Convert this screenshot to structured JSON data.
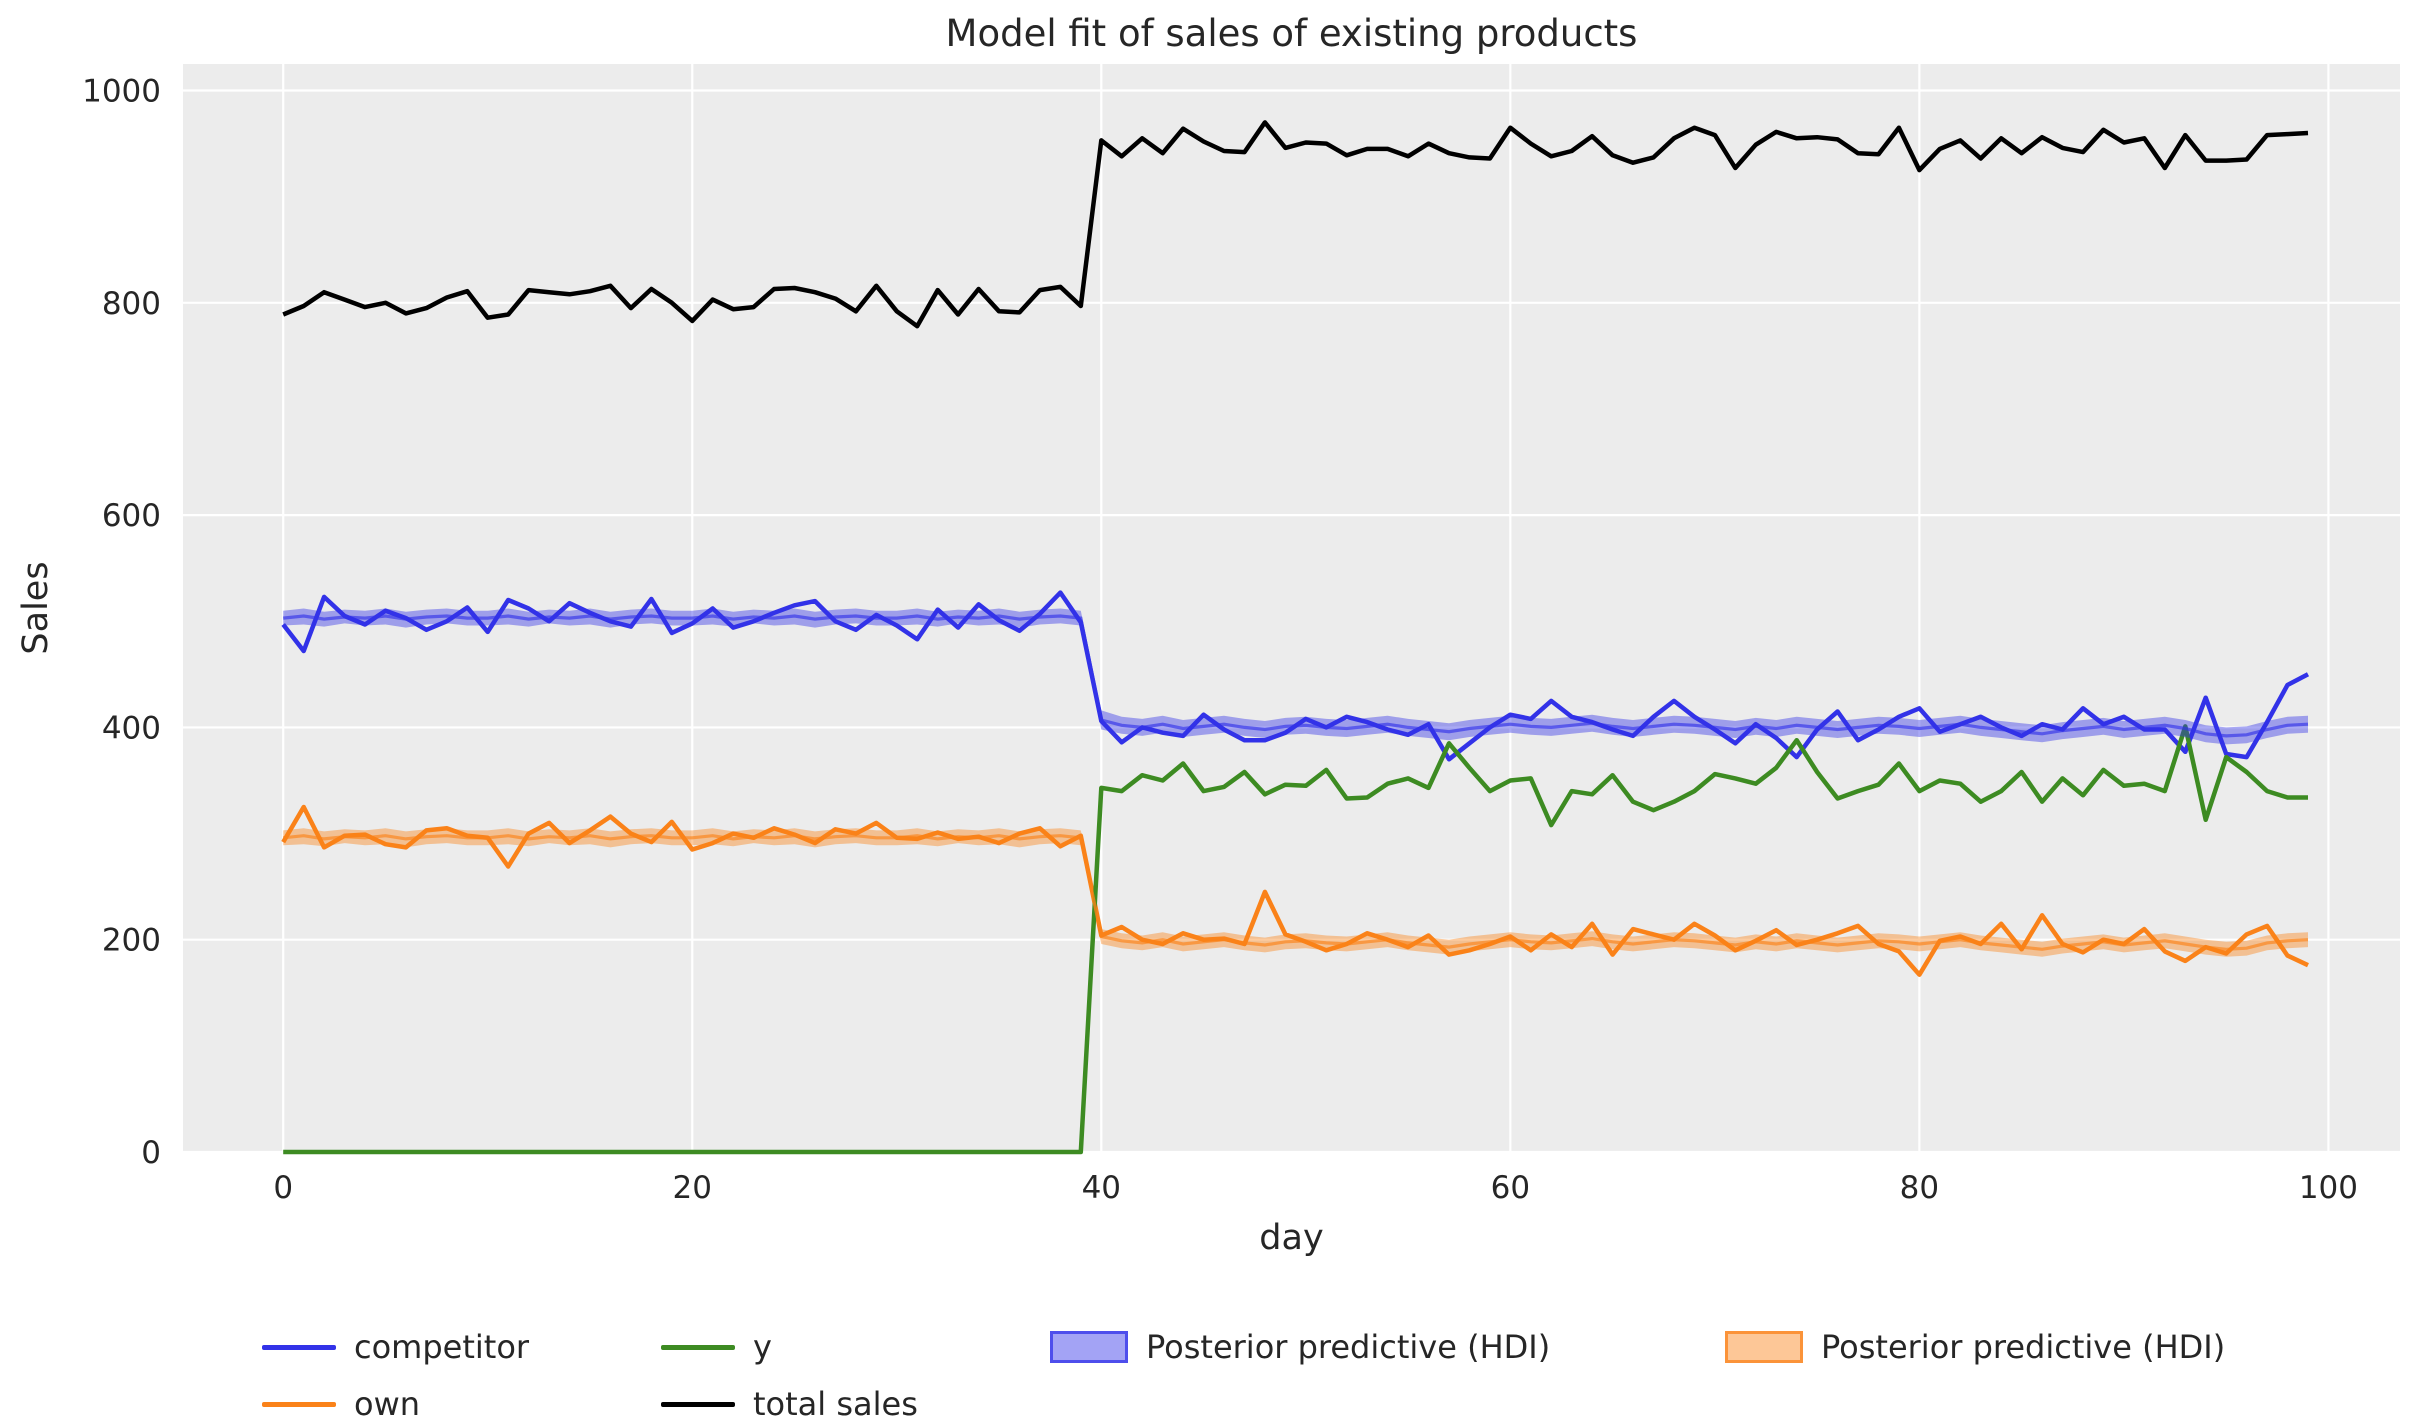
{
  "title": "Model fit of sales of existing products",
  "axes": {
    "xlabel": "day",
    "ylabel": "Sales",
    "x_ticks": [
      0,
      20,
      40,
      60,
      80,
      100
    ],
    "y_ticks": [
      0,
      200,
      400,
      600,
      800,
      1000
    ]
  },
  "colors": {
    "competitor": "#3232E8",
    "own": "#FA8219",
    "y": "#3D8B22",
    "total": "#000000",
    "plot_bg": "#ECECEC",
    "grid": "#FFFFFF",
    "text": "#262626",
    "figure_bg": "#FFFFFF"
  },
  "legend": {
    "items": [
      {
        "label": "competitor",
        "swatch": "line",
        "color": "competitor"
      },
      {
        "label": "own",
        "swatch": "line",
        "color": "own"
      },
      {
        "label": "y",
        "swatch": "line",
        "color": "y"
      },
      {
        "label": "total sales",
        "swatch": "line",
        "color": "total"
      },
      {
        "label": "Posterior predictive (HDI)",
        "swatch": "patch",
        "color": "competitor"
      },
      {
        "label": "Posterior predictive (HDI)",
        "swatch": "patch",
        "color": "own"
      }
    ]
  },
  "chart_data": {
    "type": "line",
    "title": "Model fit of sales of existing products",
    "xlabel": "day",
    "ylabel": "Sales",
    "xlim": [
      -4.9,
      103.5
    ],
    "ylim": [
      0,
      1025
    ],
    "grid": true,
    "legend_position": "below",
    "x": [
      0,
      1,
      2,
      3,
      4,
      5,
      6,
      7,
      8,
      9,
      10,
      11,
      12,
      13,
      14,
      15,
      16,
      17,
      18,
      19,
      20,
      21,
      22,
      23,
      24,
      25,
      26,
      27,
      28,
      29,
      30,
      31,
      32,
      33,
      34,
      35,
      36,
      37,
      38,
      39,
      40,
      41,
      42,
      43,
      44,
      45,
      46,
      47,
      48,
      49,
      50,
      51,
      52,
      53,
      54,
      55,
      56,
      57,
      58,
      59,
      60,
      61,
      62,
      63,
      64,
      65,
      66,
      67,
      68,
      69,
      70,
      71,
      72,
      73,
      74,
      75,
      76,
      77,
      78,
      79,
      80,
      81,
      82,
      83,
      84,
      85,
      86,
      87,
      88,
      89,
      90,
      91,
      92,
      93,
      94,
      95,
      96,
      97,
      98,
      99
    ],
    "series": [
      {
        "name": "competitor",
        "color": "competitor",
        "values": [
          497,
          472,
          523,
          505,
          497,
          510,
          503,
          492,
          500,
          513,
          490,
          520,
          512,
          500,
          517,
          508,
          500,
          495,
          521,
          489,
          498,
          512,
          494,
          500,
          508,
          515,
          519,
          500,
          492,
          506,
          496,
          483,
          511,
          494,
          516,
          501,
          491,
          507,
          527,
          499,
          406,
          386,
          400,
          395,
          392,
          412,
          398,
          388,
          388,
          395,
          408,
          400,
          410,
          405,
          398,
          393,
          403,
          370,
          385,
          400,
          412,
          408,
          425,
          410,
          405,
          398,
          392,
          410,
          425,
          410,
          398,
          385,
          403,
          390,
          372,
          398,
          415,
          388,
          398,
          410,
          418,
          396,
          403,
          410,
          400,
          392,
          403,
          398,
          418,
          403,
          410,
          398,
          398,
          377,
          428,
          375,
          372,
          405,
          440,
          450
        ]
      },
      {
        "name": "own",
        "color": "own",
        "values": [
          292,
          325,
          287,
          298,
          299,
          290,
          287,
          303,
          305,
          298,
          296,
          269,
          300,
          310,
          291,
          303,
          316,
          300,
          292,
          311,
          285,
          291,
          300,
          296,
          305,
          299,
          291,
          304,
          300,
          310,
          296,
          295,
          301,
          295,
          297,
          291,
          300,
          305,
          288,
          298,
          204,
          212,
          200,
          196,
          206,
          200,
          201,
          196,
          245,
          205,
          198,
          190,
          196,
          206,
          200,
          193,
          204,
          186,
          190,
          196,
          203,
          190,
          205,
          193,
          215,
          186,
          210,
          205,
          200,
          215,
          204,
          190,
          199,
          209,
          195,
          200,
          206,
          213,
          196,
          189,
          167,
          199,
          203,
          196,
          215,
          191,
          223,
          196,
          188,
          200,
          196,
          210,
          189,
          180,
          193,
          187,
          205,
          213,
          185,
          176
        ]
      },
      {
        "name": "y",
        "color": "y",
        "values": [
          0,
          0,
          0,
          0,
          0,
          0,
          0,
          0,
          0,
          0,
          0,
          0,
          0,
          0,
          0,
          0,
          0,
          0,
          0,
          0,
          0,
          0,
          0,
          0,
          0,
          0,
          0,
          0,
          0,
          0,
          0,
          0,
          0,
          0,
          0,
          0,
          0,
          0,
          0,
          0,
          343,
          340,
          355,
          350,
          366,
          340,
          344,
          358,
          337,
          346,
          345,
          360,
          333,
          334,
          347,
          352,
          343,
          385,
          362,
          340,
          350,
          352,
          308,
          340,
          337,
          355,
          330,
          322,
          330,
          340,
          356,
          352,
          347,
          362,
          388,
          358,
          333,
          340,
          346,
          366,
          340,
          350,
          347,
          330,
          340,
          358,
          330,
          352,
          336,
          360,
          345,
          347,
          340,
          401,
          313,
          372,
          358,
          340,
          334,
          334
        ]
      },
      {
        "name": "total sales",
        "color": "total",
        "values": [
          789,
          797,
          810,
          803,
          796,
          800,
          790,
          795,
          805,
          811,
          786,
          789,
          812,
          810,
          808,
          811,
          816,
          795,
          813,
          800,
          783,
          803,
          794,
          796,
          813,
          814,
          810,
          804,
          792,
          816,
          792,
          778,
          812,
          789,
          813,
          792,
          791,
          812,
          815,
          797,
          953,
          938,
          955,
          941,
          964,
          952,
          943,
          942,
          970,
          946,
          951,
          950,
          939,
          945,
          945,
          938,
          950,
          941,
          937,
          936,
          965,
          950,
          938,
          943,
          957,
          939,
          932,
          937,
          955,
          965,
          958,
          927,
          949,
          961,
          955,
          956,
          954,
          941,
          940,
          965,
          925,
          945,
          953,
          936,
          955,
          941,
          956,
          946,
          942,
          963,
          951,
          955,
          927,
          958,
          934,
          934,
          935,
          958,
          959,
          960
        ]
      }
    ],
    "bands": [
      {
        "name": "Posterior predictive (HDI) competitor",
        "color": "competitor",
        "lo": [
          496,
          497,
          495,
          498,
          496,
          497,
          494,
          497,
          498,
          496,
          496,
          497,
          495,
          498,
          496,
          497,
          494,
          497,
          498,
          496,
          496,
          497,
          495,
          498,
          496,
          497,
          494,
          497,
          498,
          496,
          496,
          497,
          495,
          498,
          496,
          497,
          494,
          497,
          498,
          496,
          398,
          394,
          392,
          395,
          391,
          393,
          395,
          392,
          390,
          393,
          394,
          392,
          391,
          393,
          395,
          392,
          390,
          388,
          391,
          393,
          395,
          393,
          392,
          394,
          396,
          393,
          391,
          393,
          395,
          394,
          392,
          390,
          393,
          391,
          394,
          392,
          390,
          392,
          394,
          393,
          391,
          393,
          395,
          392,
          390,
          388,
          386,
          389,
          391,
          393,
          390,
          392,
          394,
          391,
          386,
          384,
          385,
          390,
          394,
          395
        ],
        "hi": [
          510,
          512,
          509,
          511,
          510,
          512,
          509,
          511,
          512,
          510,
          510,
          512,
          509,
          511,
          510,
          512,
          509,
          511,
          512,
          510,
          510,
          512,
          509,
          511,
          510,
          512,
          509,
          511,
          512,
          510,
          510,
          512,
          509,
          511,
          510,
          512,
          509,
          511,
          512,
          510,
          416,
          410,
          408,
          411,
          407,
          409,
          411,
          408,
          406,
          409,
          410,
          408,
          407,
          409,
          411,
          408,
          406,
          404,
          407,
          409,
          411,
          409,
          408,
          410,
          412,
          409,
          407,
          409,
          411,
          410,
          408,
          406,
          409,
          407,
          410,
          408,
          406,
          408,
          410,
          409,
          407,
          409,
          411,
          408,
          406,
          404,
          402,
          405,
          407,
          409,
          406,
          408,
          410,
          407,
          402,
          400,
          401,
          406,
          410,
          411
        ],
        "mean": [
          503,
          505,
          502,
          504,
          503,
          505,
          502,
          504,
          505,
          503,
          503,
          505,
          502,
          504,
          503,
          505,
          502,
          504,
          505,
          503,
          503,
          505,
          502,
          504,
          503,
          505,
          502,
          504,
          505,
          503,
          503,
          505,
          502,
          504,
          503,
          505,
          502,
          504,
          505,
          503,
          407,
          402,
          400,
          403,
          399,
          401,
          403,
          400,
          398,
          401,
          402,
          400,
          399,
          401,
          403,
          400,
          398,
          396,
          399,
          401,
          403,
          401,
          400,
          402,
          404,
          401,
          399,
          401,
          403,
          402,
          400,
          398,
          401,
          399,
          402,
          400,
          398,
          400,
          402,
          401,
          399,
          401,
          403,
          400,
          398,
          396,
          394,
          397,
          399,
          401,
          398,
          400,
          402,
          399,
          394,
          392,
          393,
          398,
          402,
          403
        ]
      },
      {
        "name": "Posterior predictive (HDI) own",
        "color": "own",
        "lo": [
          289,
          290,
          288,
          291,
          289,
          290,
          287,
          290,
          291,
          289,
          289,
          290,
          288,
          291,
          289,
          290,
          287,
          290,
          291,
          289,
          289,
          290,
          288,
          291,
          289,
          290,
          287,
          290,
          291,
          289,
          289,
          290,
          288,
          291,
          289,
          290,
          287,
          290,
          291,
          289,
          196,
          192,
          190,
          193,
          189,
          191,
          193,
          190,
          188,
          191,
          192,
          190,
          189,
          191,
          193,
          190,
          188,
          186,
          189,
          191,
          193,
          191,
          190,
          192,
          194,
          191,
          189,
          191,
          193,
          192,
          190,
          188,
          191,
          189,
          192,
          190,
          188,
          190,
          192,
          191,
          189,
          191,
          193,
          190,
          188,
          186,
          184,
          187,
          189,
          191,
          188,
          190,
          192,
          189,
          186,
          184,
          185,
          190,
          192,
          193
        ],
        "hi": [
          303,
          305,
          302,
          304,
          303,
          305,
          302,
          304,
          305,
          303,
          303,
          305,
          302,
          304,
          303,
          305,
          302,
          304,
          305,
          303,
          303,
          305,
          302,
          304,
          303,
          305,
          302,
          304,
          305,
          303,
          303,
          305,
          302,
          304,
          303,
          305,
          302,
          304,
          305,
          303,
          210,
          206,
          204,
          207,
          203,
          205,
          207,
          204,
          202,
          205,
          206,
          204,
          203,
          205,
          207,
          204,
          202,
          200,
          203,
          205,
          207,
          205,
          204,
          206,
          208,
          205,
          203,
          205,
          207,
          206,
          204,
          202,
          205,
          203,
          206,
          204,
          202,
          204,
          206,
          205,
          203,
          205,
          207,
          204,
          202,
          200,
          198,
          201,
          203,
          205,
          202,
          204,
          206,
          203,
          200,
          198,
          199,
          204,
          206,
          207
        ],
        "mean": [
          296,
          298,
          295,
          297,
          296,
          298,
          295,
          297,
          298,
          296,
          296,
          298,
          295,
          297,
          296,
          298,
          295,
          297,
          298,
          296,
          296,
          298,
          295,
          297,
          296,
          298,
          295,
          297,
          298,
          296,
          296,
          298,
          295,
          297,
          296,
          298,
          295,
          297,
          298,
          296,
          203,
          199,
          197,
          200,
          196,
          198,
          200,
          197,
          195,
          198,
          199,
          197,
          196,
          198,
          200,
          197,
          195,
          193,
          196,
          198,
          200,
          198,
          197,
          199,
          201,
          198,
          196,
          198,
          200,
          199,
          197,
          195,
          198,
          196,
          199,
          197,
          195,
          197,
          199,
          198,
          196,
          198,
          200,
          197,
          195,
          193,
          191,
          194,
          196,
          198,
          195,
          197,
          199,
          196,
          193,
          191,
          192,
          197,
          199,
          200
        ]
      }
    ]
  }
}
